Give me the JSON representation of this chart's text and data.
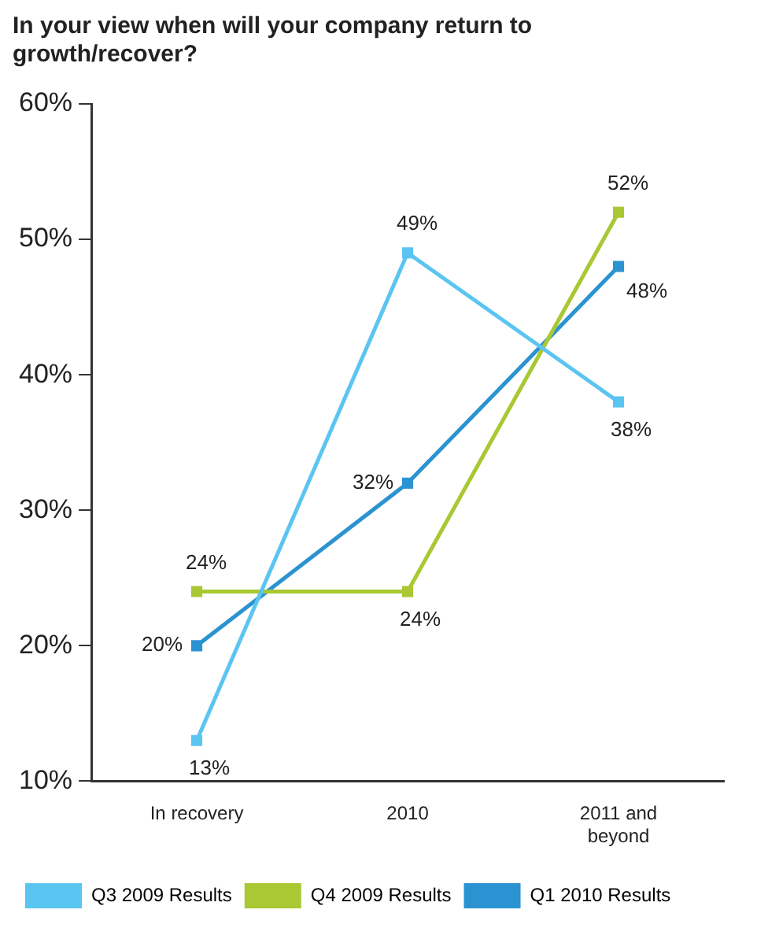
{
  "chart_data": {
    "type": "line",
    "title": "In your view when will your company return to growth/recover?",
    "categories": [
      "In recovery",
      "2010",
      "2011 and beyond"
    ],
    "series": [
      {
        "name": "Q3 2009 Results",
        "color": "#5bc5f2",
        "values": [
          13,
          49,
          38
        ],
        "value_labels": [
          "13%",
          "49%",
          "38%"
        ]
      },
      {
        "name": "Q4 2009 Results",
        "color": "#a9c833",
        "values": [
          24,
          24,
          52
        ],
        "value_labels": [
          "24%",
          "24%",
          "52%"
        ]
      },
      {
        "name": "Q1 2010 Results",
        "color": "#2b93d1",
        "values": [
          20,
          32,
          48
        ],
        "value_labels": [
          "20%",
          "32%",
          "48%"
        ]
      }
    ],
    "ylim": [
      10,
      60
    ],
    "yticks": [
      {
        "value": 10,
        "label": "10%"
      },
      {
        "value": 20,
        "label": "20%"
      },
      {
        "value": 30,
        "label": "30%"
      },
      {
        "value": 40,
        "label": "40%"
      },
      {
        "value": 50,
        "label": "50%"
      },
      {
        "value": 60,
        "label": "60%"
      }
    ],
    "grid": false,
    "legend": "bottom",
    "marker": "square",
    "line_style": "solid"
  }
}
